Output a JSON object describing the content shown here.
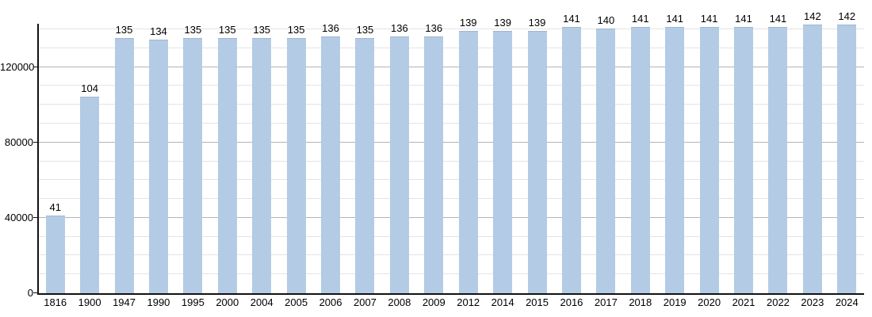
{
  "chart_data": {
    "type": "bar",
    "title": "",
    "xlabel": "",
    "ylabel": "",
    "categories": [
      "1816",
      "1900",
      "1947",
      "1990",
      "1995",
      "2000",
      "2004",
      "2005",
      "2006",
      "2007",
      "2008",
      "2009",
      "2012",
      "2014",
      "2015",
      "2016",
      "2017",
      "2018",
      "2019",
      "2020",
      "2021",
      "2022",
      "2023",
      "2024"
    ],
    "values": [
      41000,
      104000,
      135000,
      134000,
      135000,
      135000,
      135000,
      135000,
      136000,
      135000,
      136000,
      136000,
      139000,
      139000,
      139000,
      141000,
      140000,
      141000,
      141000,
      141000,
      141000,
      141000,
      142000,
      142000
    ],
    "bar_labels": [
      "41",
      "104",
      "135",
      "134",
      "135",
      "135",
      "135",
      "135",
      "136",
      "135",
      "136",
      "136",
      "139",
      "139",
      "139",
      "141",
      "140",
      "141",
      "141",
      "141",
      "141",
      "141",
      "142",
      "142"
    ],
    "y_ticks": [
      0,
      40000,
      80000,
      120000
    ],
    "y_tick_labels": [
      "0",
      "40000",
      "80000",
      "120000"
    ],
    "ylim": [
      0,
      143000
    ],
    "minor_grid_step": 10000,
    "major_grid_step": 40000,
    "grid": true,
    "legend": null,
    "colors": {
      "bar_fill": "#b3cbe5",
      "bar_edge": "#9fb7cf",
      "grid_minor": "#e4e4e4",
      "grid_major": "#b4b4b4",
      "axis": "#111111",
      "text": "#000000",
      "background": "#ffffff"
    }
  }
}
